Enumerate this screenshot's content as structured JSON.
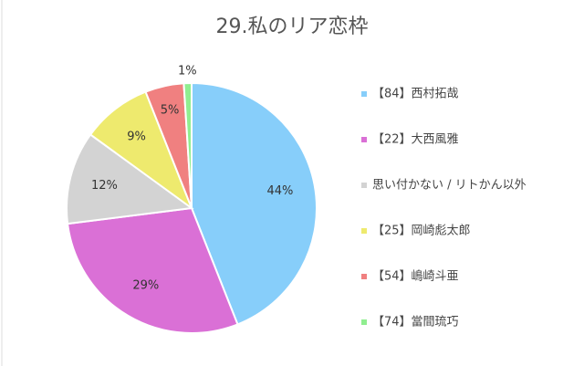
{
  "chart_data": {
    "type": "pie",
    "title": "29.私のリア恋枠",
    "categories": [
      "【84】西村拓哉",
      "【22】大西風雅",
      "思い付かない / リトかん以外",
      "【25】岡崎彪太郎",
      "【54】嶋崎斗亜",
      "【74】當間琉巧"
    ],
    "values": [
      44,
      29,
      12,
      9,
      5,
      1
    ],
    "value_labels": [
      "44%",
      "29%",
      "12%",
      "9%",
      "5%",
      "1%"
    ],
    "colors": [
      "#87cefa",
      "#da70d6",
      "#d3d3d3",
      "#eeea6e",
      "#f08080",
      "#90ee90"
    ],
    "legend": "right"
  }
}
